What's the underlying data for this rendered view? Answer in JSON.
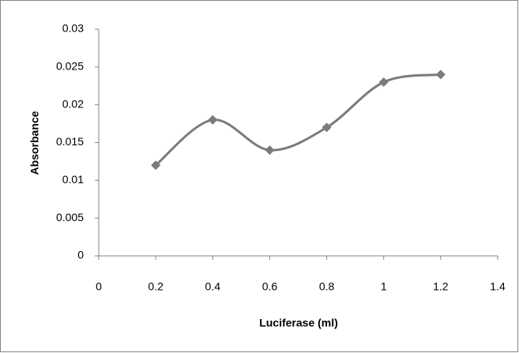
{
  "chart_data": {
    "type": "line",
    "smooth": true,
    "marker": "diamond",
    "color": "#7b7b7b",
    "x": [
      0.2,
      0.4,
      0.6,
      0.8,
      1,
      1.2
    ],
    "values": [
      0.012,
      0.018,
      0.014,
      0.017,
      0.023,
      0.024
    ],
    "xlim": [
      0,
      1.4
    ],
    "xticks": [
      0,
      0.2,
      0.4,
      0.6,
      0.8,
      1,
      1.2,
      1.4
    ],
    "ylim": [
      0,
      0.03
    ],
    "yticks": [
      0,
      0.005,
      0.01,
      0.015,
      0.02,
      0.025,
      0.03
    ],
    "x_label": "Luciferase (ml)",
    "y_label": "Absorbance",
    "grid": false
  }
}
